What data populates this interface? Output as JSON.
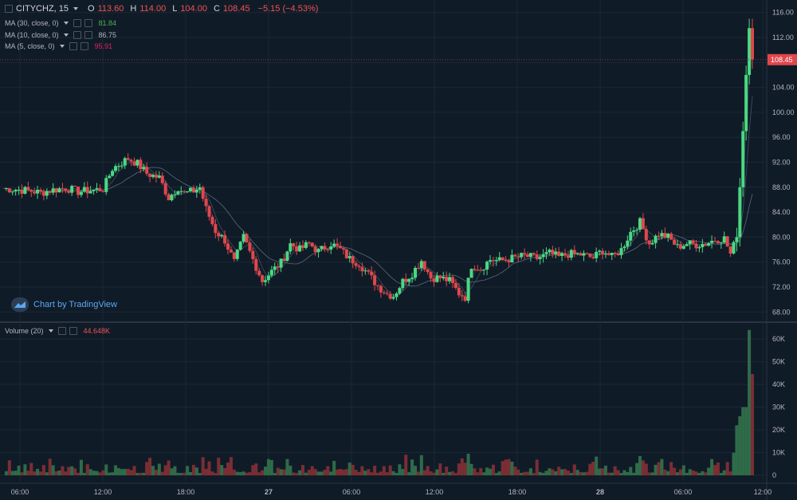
{
  "header": {
    "symbol": "CITYCHZ, 15",
    "open_label": "O",
    "open": "113.60",
    "high_label": "H",
    "high": "114.00",
    "low_label": "L",
    "low": "104.00",
    "close_label": "C",
    "close": "108.45",
    "change": "−5.15 (−4.53%)"
  },
  "indicators": [
    {
      "label": "MA (30, close, 0)",
      "value": "81.84",
      "color": "#4caf50"
    },
    {
      "label": "MA (10, close, 0)",
      "value": "86.75",
      "color": "#b2b5be"
    },
    {
      "label": "MA (5, close, 0)",
      "value": "95.91",
      "color": "#e91e63"
    }
  ],
  "volume_indicator": {
    "label": "Volume (20)",
    "value": "44.648K"
  },
  "branding": "Chart by TradingView",
  "colors": {
    "up": "#4ad981",
    "down": "#e0474c",
    "background": "#101b28",
    "grid": "#1c2735",
    "price_label_bg": "#e0474c"
  },
  "chart_data": {
    "type": "candlestick",
    "title": "CITYCHZ, 15",
    "price_axis": {
      "ticks": [
        "116.00",
        "112.00",
        "108.00",
        "104.00",
        "100.00",
        "96.00",
        "92.00",
        "88.00",
        "84.00",
        "80.00",
        "76.00",
        "72.00",
        "68.00"
      ],
      "ylim": [
        66.5,
        117.5
      ]
    },
    "current_price_label": "108.45",
    "volume_axis": {
      "ticks": [
        "60K",
        "50K",
        "40K",
        "30K",
        "20K",
        "10K",
        "0"
      ],
      "ylim": [
        0,
        66000
      ]
    },
    "time_axis": {
      "ticks": [
        "06:00",
        "12:00",
        "18:00",
        "27",
        "06:00",
        "12:00",
        "18:00",
        "28",
        "06:00",
        "12:00"
      ]
    },
    "grid": true,
    "series_note": "approximate close path read from 15-minute candles",
    "close_path": [
      [
        0,
        87.8
      ],
      [
        10,
        87.6
      ],
      [
        18,
        87.4
      ],
      [
        24,
        87.1
      ],
      [
        30,
        87.5
      ],
      [
        40,
        87.9
      ],
      [
        48,
        87.3
      ],
      [
        56,
        87.5
      ],
      [
        64,
        87.7
      ],
      [
        70,
        91.0
      ],
      [
        80,
        92.6
      ],
      [
        86,
        91.8
      ],
      [
        92,
        90.2
      ],
      [
        100,
        89.5
      ],
      [
        106,
        86.3
      ],
      [
        112,
        88.0
      ],
      [
        116,
        87.0
      ],
      [
        122,
        87.4
      ],
      [
        126,
        88.0
      ],
      [
        130,
        84.5
      ],
      [
        136,
        81.0
      ],
      [
        142,
        79.5
      ],
      [
        148,
        76.0
      ],
      [
        154,
        80.0
      ],
      [
        160,
        76.4
      ],
      [
        166,
        73.0
      ],
      [
        172,
        74.5
      ],
      [
        178,
        75.9
      ],
      [
        184,
        78.9
      ],
      [
        190,
        78.0
      ],
      [
        196,
        79.0
      ],
      [
        202,
        77.7
      ],
      [
        210,
        79.0
      ],
      [
        216,
        78.0
      ],
      [
        222,
        76.5
      ],
      [
        228,
        75.8
      ],
      [
        234,
        74.0
      ],
      [
        240,
        72.2
      ],
      [
        246,
        70.9
      ],
      [
        250,
        70.6
      ],
      [
        256,
        72.9
      ],
      [
        262,
        74.2
      ],
      [
        268,
        76.3
      ],
      [
        274,
        73.5
      ],
      [
        280,
        73.5
      ],
      [
        286,
        73.0
      ],
      [
        292,
        71.0
      ],
      [
        296,
        70.4
      ],
      [
        300,
        75.5
      ],
      [
        306,
        75.0
      ],
      [
        312,
        76.4
      ],
      [
        318,
        76.2
      ],
      [
        326,
        76.6
      ],
      [
        334,
        77.0
      ],
      [
        342,
        76.6
      ],
      [
        350,
        77.4
      ],
      [
        356,
        76.8
      ],
      [
        362,
        77.3
      ],
      [
        370,
        77.2
      ],
      [
        378,
        76.7
      ],
      [
        384,
        77.9
      ],
      [
        390,
        76.8
      ],
      [
        396,
        78.0
      ],
      [
        402,
        80.8
      ],
      [
        408,
        82.4
      ],
      [
        414,
        79.0
      ],
      [
        420,
        80.5
      ],
      [
        426,
        80.0
      ],
      [
        432,
        78.4
      ],
      [
        438,
        79.0
      ],
      [
        444,
        78.8
      ],
      [
        450,
        79.0
      ],
      [
        456,
        79.6
      ],
      [
        462,
        79.8
      ],
      [
        466,
        77.3
      ],
      [
        470,
        80.0
      ],
      [
        472,
        88.0
      ],
      [
        476,
        106.0
      ],
      [
        478,
        113.5
      ],
      [
        480,
        108.45
      ]
    ],
    "volume_note": "bars mostly under 12K; final spike near 64K",
    "volume_peak": "64K"
  }
}
